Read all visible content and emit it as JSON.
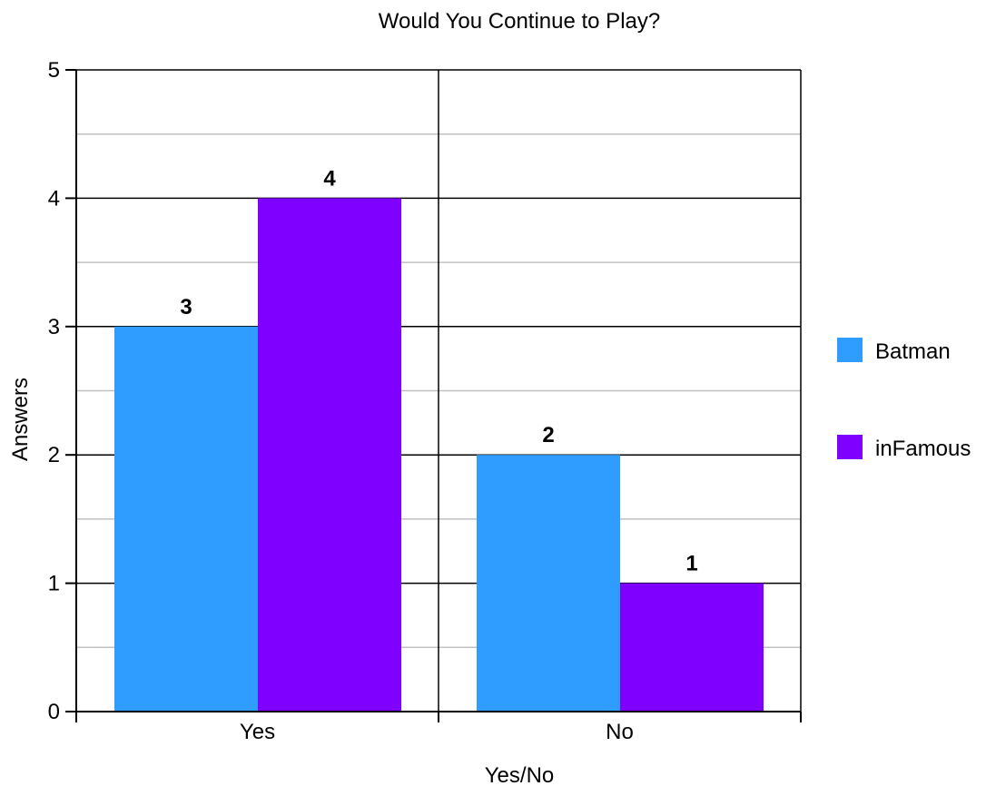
{
  "chart_data": {
    "type": "bar",
    "title": "Would You Continue to Play?",
    "xlabel": "Yes/No",
    "ylabel": "Answers",
    "categories": [
      "Yes",
      "No"
    ],
    "series": [
      {
        "name": "Batman",
        "values": [
          3,
          2
        ],
        "color": "#2f9dff"
      },
      {
        "name": "inFamous",
        "values": [
          4,
          1
        ],
        "color": "#7f00ff"
      }
    ],
    "ylim": [
      0,
      5
    ],
    "yticks": [
      0,
      1,
      2,
      3,
      4,
      5
    ],
    "major_gridline_color": "#000000",
    "minor_gridline_color": "#c0c0c0",
    "grid": true,
    "legend_position": "right"
  }
}
